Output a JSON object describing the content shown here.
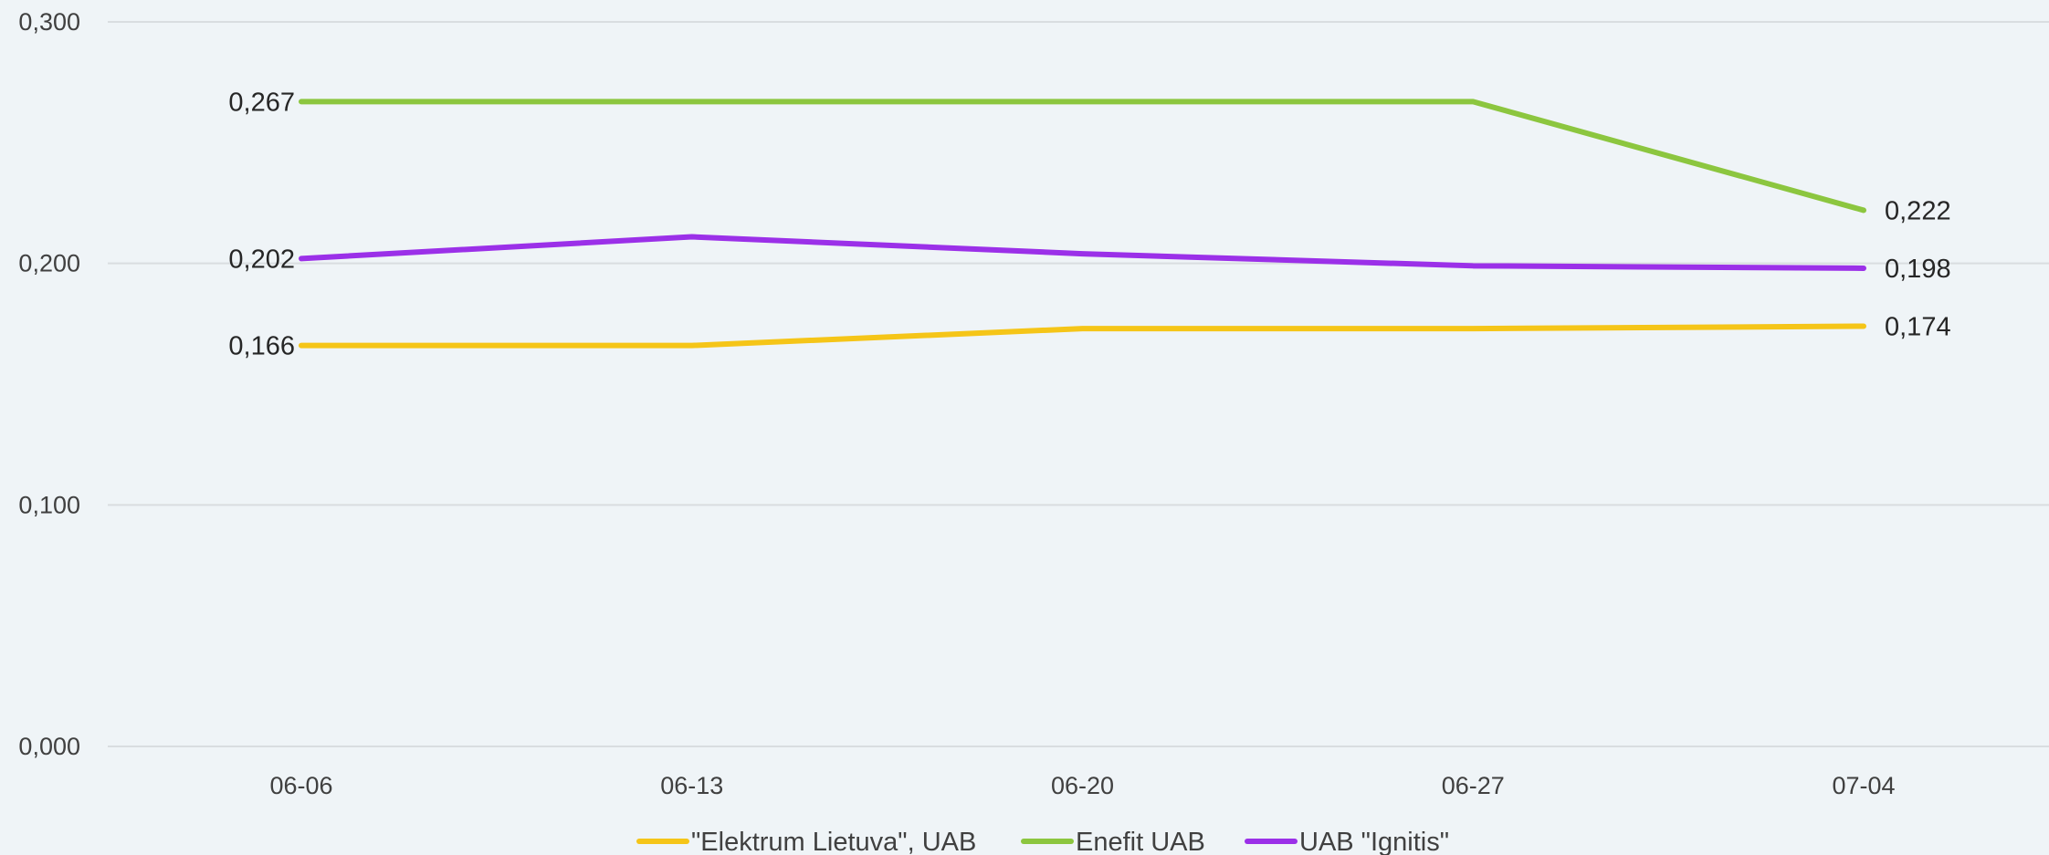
{
  "chart_data": {
    "type": "line",
    "title": "",
    "xlabel": "",
    "ylabel": "",
    "categories": [
      "06-06",
      "06-13",
      "06-20",
      "06-27",
      "07-04"
    ],
    "ylim": [
      0,
      0.3
    ],
    "yticks": [
      0,
      0.1,
      0.2,
      0.3
    ],
    "ytick_labels": [
      "0,000",
      "0,100",
      "0,200",
      "0,300"
    ],
    "grid": true,
    "legend_position": "bottom",
    "series": [
      {
        "name": "\"Elektrum Lietuva\", UAB",
        "color": "#f5c518",
        "values": [
          0.166,
          0.166,
          0.173,
          0.173,
          0.174
        ],
        "labels": [
          {
            "index": 0,
            "text": "0,166",
            "side": "left"
          },
          {
            "index": 4,
            "text": "0,174",
            "side": "right"
          }
        ]
      },
      {
        "name": "Enefit UAB",
        "color": "#8cc63f",
        "values": [
          0.267,
          0.267,
          0.267,
          0.267,
          0.222
        ],
        "labels": [
          {
            "index": 0,
            "text": "0,267",
            "side": "left"
          },
          {
            "index": 4,
            "text": "0,222",
            "side": "right"
          }
        ]
      },
      {
        "name": "UAB \"Ignitis\"",
        "color": "#9b30e8",
        "values": [
          0.202,
          0.211,
          0.204,
          0.199,
          0.198
        ],
        "labels": [
          {
            "index": 0,
            "text": "0,202",
            "side": "left"
          },
          {
            "index": 4,
            "text": "0,198",
            "side": "right"
          }
        ]
      }
    ]
  }
}
